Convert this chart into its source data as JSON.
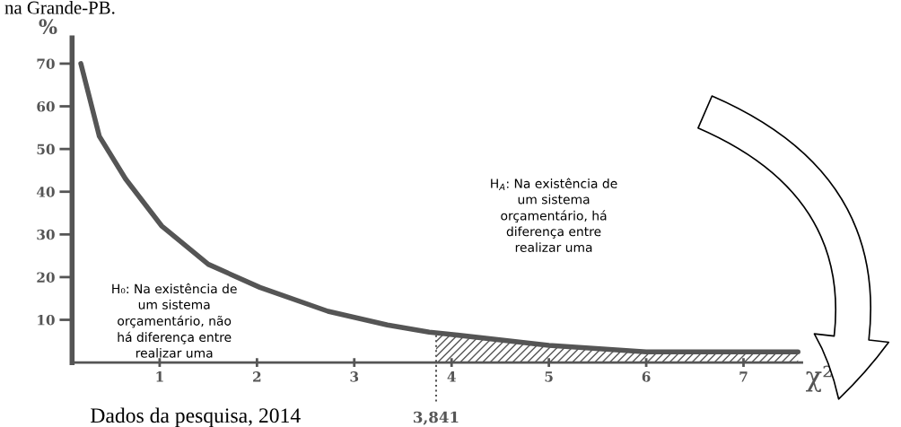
{
  "chart_data": {
    "type": "line",
    "ylabel": "%",
    "xlabel": "χ²",
    "xlim": [
      0.1,
      7.6
    ],
    "ylim": [
      0,
      76
    ],
    "xticks": [
      1,
      2,
      3,
      4,
      5,
      6,
      7
    ],
    "yticks": [
      10,
      20,
      30,
      40,
      50,
      60,
      70
    ],
    "grid": false,
    "series": [
      {
        "color": "#555555",
        "x": [
          0.19,
          0.38,
          0.65,
          1.02,
          1.5,
          2.03,
          2.73,
          3.34,
          3.77,
          3.95,
          5.0,
          6.0,
          7.56
        ],
        "values": [
          70,
          53,
          43,
          32,
          23,
          17.6,
          12,
          8.8,
          7.1,
          6.7,
          4,
          2.5,
          2.5
        ]
      },
      {
        "type": "area",
        "color": "#555555",
        "x": [
          3.841,
          5.0,
          6.0,
          7.56
        ],
        "values": [
          6.9,
          4,
          2.5,
          2.5
        ]
      }
    ],
    "ref_lines": [
      {
        "axis": "x",
        "value": 3.841,
        "label": "3,841",
        "line_style": "dotted",
        "color": "#555555"
      }
    ],
    "annotations": [
      "na Grande-PB.",
      "H₀: Na existência de\num sistema\norçamentário, não\nhá diferença entre\nrealizar uma",
      "H$_{A}$: Na existência de\num sistema\norçamentário, há\ndiferença entre\nrealizar uma",
      "Dados da pesquisa, 2014"
    ]
  }
}
